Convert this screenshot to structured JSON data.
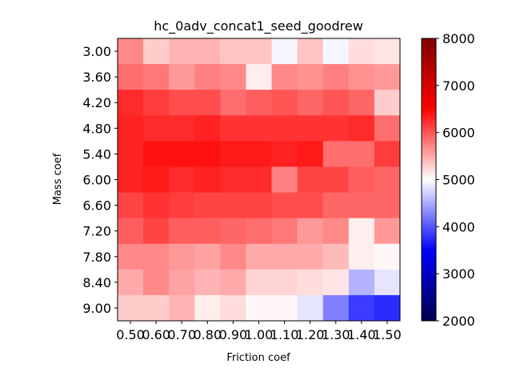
{
  "chart_data": {
    "type": "heatmap",
    "title": "hc_0adv_concat1_seed_goodrew",
    "xlabel": "Friction coef",
    "ylabel": "Mass coef",
    "x_categories": [
      "0.50",
      "0.60",
      "0.70",
      "0.80",
      "0.90",
      "1.00",
      "1.10",
      "1.20",
      "1.30",
      "1.40",
      "1.50"
    ],
    "y_categories": [
      "3.00",
      "3.60",
      "4.20",
      "4.80",
      "5.40",
      "6.00",
      "6.60",
      "7.20",
      "7.80",
      "8.40",
      "9.00"
    ],
    "values": [
      [
        5700,
        5300,
        5450,
        5450,
        5350,
        5350,
        4950,
        5350,
        4950,
        5200,
        5150
      ],
      [
        5850,
        5800,
        5600,
        5750,
        5700,
        5100,
        5700,
        5650,
        5750,
        5650,
        5600
      ],
      [
        6250,
        6150,
        6050,
        6050,
        5850,
        5950,
        6000,
        5900,
        6000,
        5900,
        5300
      ],
      [
        6300,
        6250,
        6250,
        6300,
        6200,
        6200,
        6200,
        6200,
        6200,
        6250,
        5850
      ],
      [
        6300,
        6400,
        6400,
        6400,
        6350,
        6350,
        6300,
        6350,
        5850,
        5850,
        6150
      ],
      [
        6300,
        6350,
        6250,
        6300,
        6250,
        6250,
        5750,
        6100,
        6100,
        5950,
        5900
      ],
      [
        6100,
        6200,
        6150,
        6100,
        6100,
        6100,
        6050,
        6050,
        5900,
        5900,
        5900
      ],
      [
        5950,
        6100,
        5950,
        5950,
        5900,
        5850,
        5800,
        5600,
        5700,
        5100,
        5600
      ],
      [
        5700,
        5700,
        5600,
        5550,
        5700,
        5500,
        5500,
        5500,
        5400,
        5100,
        5050
      ],
      [
        5500,
        5700,
        5550,
        5450,
        5500,
        5250,
        5250,
        5200,
        5150,
        4550,
        4850
      ],
      [
        5300,
        5300,
        5450,
        5100,
        5200,
        5050,
        5050,
        4850,
        4250,
        3850,
        3750
      ]
    ],
    "colorbar": {
      "colormap": "seismic",
      "vmin": 2000,
      "vmax": 8000,
      "ticks": [
        "2000",
        "3000",
        "4000",
        "5000",
        "6000",
        "7000",
        "8000"
      ]
    }
  }
}
